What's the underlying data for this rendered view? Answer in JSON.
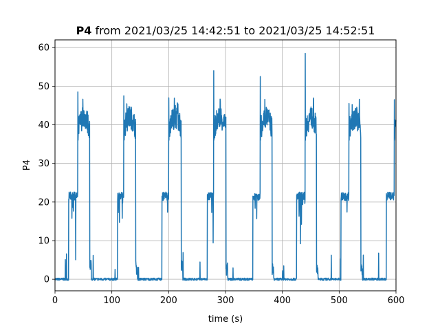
{
  "chart_data": {
    "type": "line",
    "title_bold": "P4",
    "title_rest": " from 2021/03/25 14:42:51 to 2021/03/25 14:52:51",
    "xlabel": "time (s)",
    "ylabel": "P4",
    "xlim": [
      0,
      600
    ],
    "ylim": [
      -3,
      62
    ],
    "xticks": [
      0,
      100,
      200,
      300,
      400,
      500,
      600
    ],
    "yticks": [
      0,
      10,
      20,
      30,
      40,
      50,
      60
    ],
    "grid": true,
    "series": [
      {
        "color": "#1f77b4",
        "cycles": [
          {
            "rise": 24,
            "low_end": 40,
            "high_end": 61,
            "fall_end": 64,
            "peak": 48.5
          },
          {
            "rise": 110,
            "low_end": 121,
            "high_end": 142,
            "fall_end": 145,
            "peak": 47.5
          },
          {
            "rise": 188,
            "low_end": 200,
            "high_end": 222,
            "fall_end": 225,
            "peak": 47
          },
          {
            "rise": 268,
            "low_end": 279,
            "high_end": 301,
            "fall_end": 304,
            "peak": 54
          },
          {
            "rise": 348,
            "low_end": 361,
            "high_end": 382,
            "fall_end": 385,
            "peak": 52.5
          },
          {
            "rise": 425,
            "low_end": 440,
            "high_end": 460,
            "fall_end": 463,
            "peak": 58.5
          },
          {
            "rise": 503,
            "low_end": 517,
            "high_end": 538,
            "fall_end": 541,
            "peak": 45.5
          },
          {
            "rise": 583,
            "low_end": 597,
            "high_end": 600,
            "fall_end": 600,
            "peak": 46.5
          }
        ],
        "baseline": 0,
        "low_level": 21.5,
        "high_level": 41
      }
    ]
  }
}
